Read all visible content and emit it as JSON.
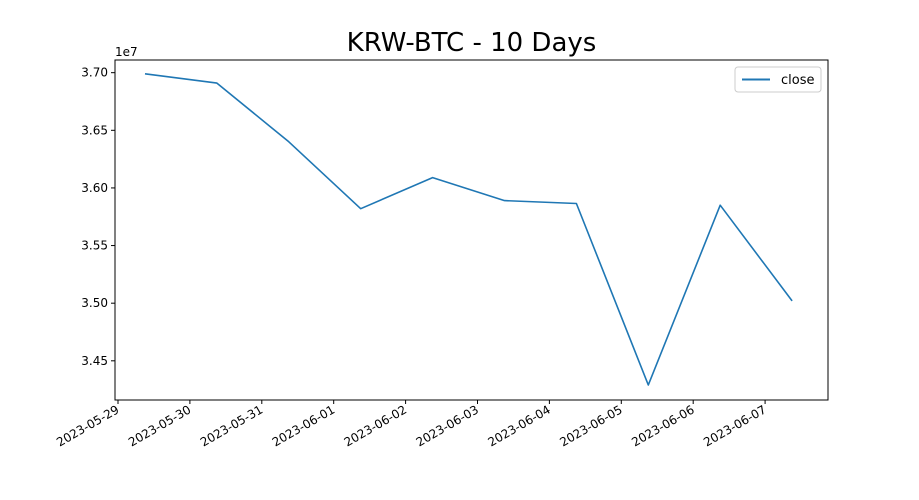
{
  "chart_data": {
    "type": "line",
    "title": "KRW-BTC - 10 Days",
    "xlabel": "",
    "ylabel": "",
    "y_offset_label": "1e7",
    "y_multiplier": 10000000,
    "x_ticks": [
      "2023-05-29",
      "2023-05-30",
      "2023-05-31",
      "2023-06-01",
      "2023-06-02",
      "2023-06-03",
      "2023-06-04",
      "2023-06-05",
      "2023-06-06",
      "2023-06-07"
    ],
    "y_ticks": [
      "3.45",
      "3.50",
      "3.55",
      "3.60",
      "3.65",
      "3.70"
    ],
    "xlim": [
      "2023-05-28T23:00",
      "2023-06-07T21:00"
    ],
    "ylim": [
      34160000,
      37110000
    ],
    "grid": false,
    "legend": {
      "position": "top-right",
      "entries": [
        "close"
      ]
    },
    "series": [
      {
        "name": "close",
        "color": "#1f77b4",
        "x": [
          "2023-05-29T09:00",
          "2023-05-30T09:00",
          "2023-05-31T09:00",
          "2023-06-01T09:00",
          "2023-06-02T09:00",
          "2023-06-03T09:00",
          "2023-06-04T09:00",
          "2023-06-05T09:00",
          "2023-06-06T09:00",
          "2023-06-07T09:00"
        ],
        "values": [
          36990000,
          36910000,
          36400000,
          35820000,
          36090000,
          35890000,
          35865000,
          34290000,
          35850000,
          35020000
        ]
      }
    ]
  }
}
